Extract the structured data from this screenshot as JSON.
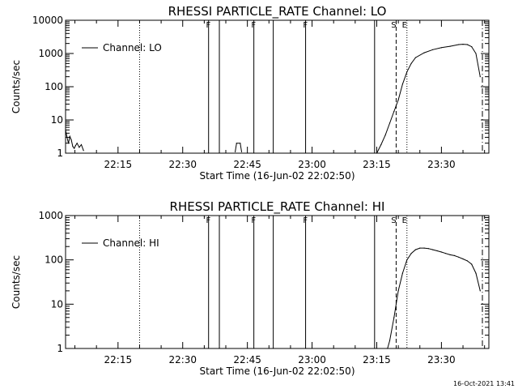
{
  "timestamp": "16-Oct-2021 13:41",
  "chart_data": [
    {
      "type": "line",
      "title": "RHESSI PARTICLE_RATE Channel: LO",
      "xlabel": "Start Time (16-Jun-02 22:02:50)",
      "ylabel": "Counts/sec",
      "yscale": "log",
      "ylim": [
        1,
        10000
      ],
      "xlim": [
        "22:02:50",
        "23:41:00"
      ],
      "ytick_labels": [
        "1",
        "10",
        "100",
        "1000",
        "10000"
      ],
      "xtick_labels": [
        "22:15",
        "22:30",
        "22:45",
        "23:00",
        "23:15",
        "23:30"
      ],
      "legend": {
        "entry": "Channel: LO",
        "position": "top-left"
      },
      "grid": false,
      "flags": [
        {
          "label": "F",
          "time": "22:36:30"
        },
        {
          "label": "F",
          "time": "22:47:00"
        },
        {
          "label": "F",
          "time": "22:59:00"
        },
        {
          "label": "S",
          "time": "23:19:30"
        },
        {
          "label": "E",
          "time": "23:22:00"
        }
      ],
      "series": [
        {
          "name": "Channel: LO",
          "x": [
            "22:02:50",
            "22:03:10",
            "22:03:30",
            "22:03:50",
            "22:04:10",
            "22:04:30",
            "22:04:50",
            "22:05:10",
            "22:05:30",
            "22:06:00",
            "22:06:30",
            "22:07:00",
            "22:42:10",
            "22:42:30",
            "22:43:20",
            "22:43:40",
            "23:15:00",
            "23:16:00",
            "23:17:00",
            "23:18:00",
            "23:19:00",
            "23:20:00",
            "23:21:00",
            "23:22:00",
            "23:23:00",
            "23:24:00",
            "23:26:00",
            "23:28:00",
            "23:30:00",
            "23:32:00",
            "23:34:00",
            "23:35:00",
            "23:36:00",
            "23:37:00",
            "23:38:00",
            "23:39:00"
          ],
          "y": [
            5,
            3,
            2,
            3.2,
            2.5,
            1.6,
            1.4,
            1.7,
            2,
            1.5,
            1.8,
            1.2,
            1.1,
            2,
            2,
            1.1,
            1,
            1.8,
            3.5,
            8,
            18,
            40,
            120,
            280,
            500,
            750,
            1050,
            1300,
            1500,
            1650,
            1850,
            1900,
            1850,
            1600,
            1000,
            200
          ]
        }
      ],
      "vlines": [
        {
          "style": "dotted",
          "time": "22:20:00"
        },
        {
          "style": "solid",
          "time": "22:36:00"
        },
        {
          "style": "solid",
          "time": "22:38:30"
        },
        {
          "style": "solid",
          "time": "22:46:30"
        },
        {
          "style": "solid",
          "time": "22:51:00"
        },
        {
          "style": "solid",
          "time": "22:58:30"
        },
        {
          "style": "solid",
          "time": "23:14:30"
        },
        {
          "style": "dashed",
          "time": "23:19:30"
        },
        {
          "style": "dotted",
          "time": "23:22:00"
        },
        {
          "style": "dashdot",
          "time": "23:39:30"
        }
      ]
    },
    {
      "type": "line",
      "title": "RHESSI PARTICLE_RATE Channel: HI",
      "xlabel": "Start Time (16-Jun-02 22:02:50)",
      "ylabel": "Counts/sec",
      "yscale": "log",
      "ylim": [
        1,
        1000
      ],
      "xlim": [
        "22:02:50",
        "23:41:00"
      ],
      "ytick_labels": [
        "1",
        "10",
        "100",
        "1000"
      ],
      "xtick_labels": [
        "22:15",
        "22:30",
        "22:45",
        "23:00",
        "23:15",
        "23:30"
      ],
      "legend": {
        "entry": "Channel: HI",
        "position": "top-left"
      },
      "grid": false,
      "flags": [
        {
          "label": "F",
          "time": "22:36:30"
        },
        {
          "label": "F",
          "time": "22:47:00"
        },
        {
          "label": "F",
          "time": "22:59:00"
        },
        {
          "label": "S",
          "time": "23:19:30"
        },
        {
          "label": "E",
          "time": "23:22:00"
        }
      ],
      "series": [
        {
          "name": "Channel: HI",
          "x": [
            "23:17:30",
            "23:18:00",
            "23:19:00",
            "23:20:00",
            "23:21:00",
            "23:22:00",
            "23:23:00",
            "23:24:00",
            "23:25:00",
            "23:26:00",
            "23:27:00",
            "23:28:00",
            "23:29:00",
            "23:30:00",
            "23:31:00",
            "23:32:00",
            "23:33:00",
            "23:34:00",
            "23:35:00",
            "23:36:00",
            "23:37:00",
            "23:38:00",
            "23:39:00"
          ],
          "y": [
            1,
            1.5,
            5,
            20,
            50,
            100,
            140,
            170,
            185,
            185,
            180,
            170,
            160,
            150,
            140,
            130,
            125,
            115,
            105,
            95,
            80,
            50,
            20
          ]
        }
      ],
      "vlines": [
        {
          "style": "dotted",
          "time": "22:20:00"
        },
        {
          "style": "solid",
          "time": "22:36:00"
        },
        {
          "style": "solid",
          "time": "22:38:30"
        },
        {
          "style": "solid",
          "time": "22:46:30"
        },
        {
          "style": "solid",
          "time": "22:51:00"
        },
        {
          "style": "solid",
          "time": "22:58:30"
        },
        {
          "style": "solid",
          "time": "23:14:30"
        },
        {
          "style": "dashed",
          "time": "23:19:30"
        },
        {
          "style": "dotted",
          "time": "23:22:00"
        },
        {
          "style": "dashdot",
          "time": "23:39:30"
        }
      ]
    }
  ]
}
